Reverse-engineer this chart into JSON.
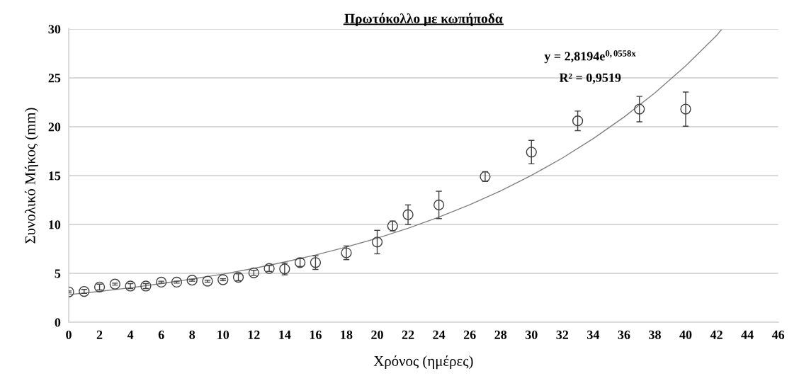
{
  "chart_data": {
    "type": "scatter",
    "title": "Πρωτόκολλο με κωπήποδα",
    "xlabel": "Χρόνος (ημέρες)",
    "ylabel": "Συνολικό Μήκος (mm)",
    "xlim": [
      0,
      46
    ],
    "xticks": [
      0,
      2,
      4,
      6,
      8,
      10,
      12,
      14,
      16,
      18,
      20,
      22,
      24,
      26,
      28,
      30,
      32,
      34,
      36,
      38,
      40,
      42,
      44,
      46
    ],
    "ylim": [
      0,
      30
    ],
    "yticks": [
      0,
      5,
      10,
      15,
      20,
      25,
      30
    ],
    "grid": "y",
    "annotations": [
      "y = 2,8194e$^{0,0558x}$",
      "R² = 0,9519"
    ],
    "series": [
      {
        "color": "#404040",
        "marker": "circle",
        "x": [
          0,
          1,
          2,
          3,
          4,
          5,
          6,
          7,
          8,
          9,
          10,
          11,
          12,
          13,
          14,
          15,
          16,
          18,
          20,
          21,
          22,
          24,
          27,
          30,
          33,
          37,
          40
        ],
        "values": [
          3.1,
          3.15,
          3.6,
          3.9,
          3.7,
          3.7,
          4.1,
          4.1,
          4.3,
          4.2,
          4.35,
          4.6,
          5.05,
          5.5,
          5.45,
          6.1,
          6.1,
          7.1,
          8.2,
          9.85,
          11.0,
          12.0,
          14.9,
          17.4,
          20.6,
          21.8,
          21.8
        ],
        "errors": [
          0.1,
          0.2,
          0.3,
          0.1,
          0.25,
          0.25,
          0.1,
          0.1,
          0.1,
          0.1,
          0.1,
          0.35,
          0.25,
          0.3,
          0.6,
          0.4,
          0.7,
          0.7,
          1.2,
          0.5,
          1.0,
          1.4,
          0.5,
          1.2,
          1.0,
          1.3,
          1.75
        ]
      },
      {
        "type": "line",
        "color": "#808080",
        "marker": "none",
        "line_style": "solid",
        "x": [
          0,
          2,
          4,
          6,
          8,
          10,
          12,
          14,
          16,
          18,
          20,
          22,
          24,
          26,
          28,
          30,
          32,
          34,
          36,
          38,
          40,
          42,
          42.3
        ],
        "values": [
          2.82,
          3.16,
          3.53,
          3.95,
          4.42,
          4.92,
          5.51,
          6.16,
          6.88,
          7.69,
          8.6,
          9.61,
          10.75,
          12.02,
          13.43,
          15.02,
          16.79,
          18.77,
          20.98,
          23.46,
          26.22,
          29.32,
          29.9
        ]
      }
    ]
  }
}
